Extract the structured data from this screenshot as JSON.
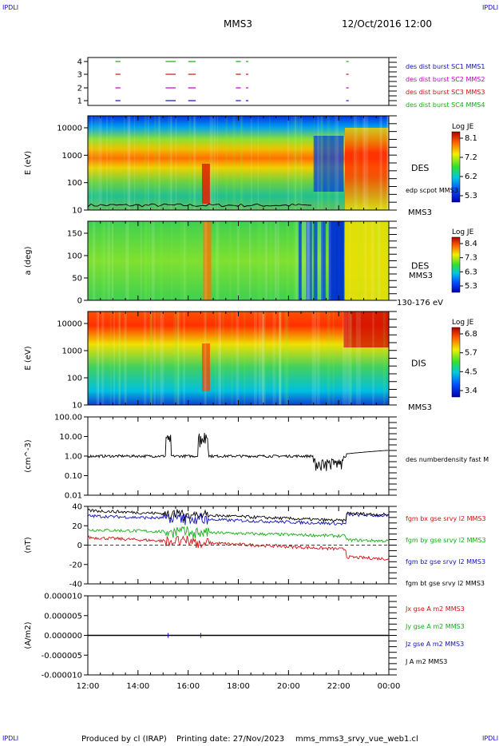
{
  "corners": {
    "tl": "IPDLI",
    "tr": "IPDLI",
    "bl": "IPDLI",
    "br": "IPDLI"
  },
  "header": {
    "spacecraft": "MMS3",
    "datetime": "12/Oct/2016 12:00"
  },
  "footer": {
    "produced_by": "Produced by cl (IRAP)",
    "printing_date": "Printing date: 27/Nov/2023",
    "script": "mms_mms3_srvy_vue_web1.cl"
  },
  "time_axis": {
    "ticks": [
      "12:00",
      "14:00",
      "16:00",
      "18:00",
      "20:00",
      "22:00",
      "00:00"
    ]
  },
  "chart_data": [
    {
      "type": "timeline",
      "name": "burst",
      "yticks": [
        "4",
        "3",
        "2",
        "1"
      ],
      "legend": [
        {
          "label": "des dist burst SC1 MMS1",
          "color": "#1010c0"
        },
        {
          "label": "des dist burst SC2 MMS2",
          "color": "#c000c0"
        },
        {
          "label": "des dist burst SC3 MMS3",
          "color": "#d01010"
        },
        {
          "label": "des dist burst SC4 MMS4",
          "color": "#10b010"
        }
      ],
      "intervals_hours": [
        [
          13.1,
          13.3
        ],
        [
          15.1,
          15.5
        ],
        [
          16.0,
          16.3
        ],
        [
          17.9,
          18.1
        ],
        [
          18.3,
          18.4
        ],
        [
          22.3,
          22.4
        ]
      ],
      "row_colors": [
        "#10b010",
        "#d01010",
        "#c000c0",
        "#1010c0"
      ]
    },
    {
      "type": "heatmap",
      "name": "des-energy",
      "ylabel": "E (eV)",
      "yticks": [
        "10000",
        "1000",
        "100",
        "10"
      ],
      "yscale": "log",
      "ylim": [
        10,
        30000
      ],
      "cbar": {
        "title": "Log JE",
        "ticks": [
          "8.1",
          "7.2",
          "6.2",
          "5.3"
        ]
      },
      "right_label": "DES",
      "sub_label": "edp scpot MMS3",
      "bottom_right": "MMS3"
    },
    {
      "type": "heatmap",
      "name": "des-pitch",
      "ylabel": "a (deg)",
      "yticks": [
        "150",
        "100",
        "50",
        "0"
      ],
      "ylim": [
        0,
        180
      ],
      "cbar": {
        "title": "Log JE",
        "ticks": [
          "8.4",
          "7.3",
          "6.3",
          "5.3"
        ]
      },
      "right_label": "DES",
      "sub_label": "MMS3",
      "bottom_right": "130-176 eV"
    },
    {
      "type": "heatmap",
      "name": "dis-energy",
      "ylabel": "E (eV)",
      "yticks": [
        "10000",
        "1000",
        "100",
        "10"
      ],
      "yscale": "log",
      "ylim": [
        10,
        30000
      ],
      "cbar": {
        "title": "Log JE",
        "ticks": [
          "6.8",
          "5.7",
          "4.5",
          "3.4"
        ]
      },
      "right_label": "DIS",
      "bottom_right": "MMS3"
    },
    {
      "type": "line",
      "name": "density",
      "ylabel": "(cm^-3)",
      "yscale": "log",
      "yticks": [
        "100.00",
        "10.00",
        "1.00",
        "0.10",
        "0.01"
      ],
      "ylim": [
        0.01,
        100
      ],
      "series": [
        {
          "name": "des numberdensity fast M",
          "color": "#000000"
        }
      ]
    },
    {
      "type": "line",
      "name": "bfield",
      "ylabel": "(nT)",
      "yticks": [
        "40",
        "20",
        "0",
        "-20",
        "-40"
      ],
      "ylim": [
        -50,
        50
      ],
      "series": [
        {
          "name": "fgm bx gse srvy l2 MMS3",
          "color": "#d01010"
        },
        {
          "name": "fgm by gse srvy l2 MMS3",
          "color": "#10b010"
        },
        {
          "name": "fgm bz gse srvy l2 MMS3",
          "color": "#1010c0"
        },
        {
          "name": "fgm bt gse srvy l2 MMS3",
          "color": "#000000"
        }
      ]
    },
    {
      "type": "line",
      "name": "current",
      "ylabel": "(A/m2)",
      "yticks": [
        "0.000010",
        "0.000005",
        "0.000000",
        "-0.000005",
        "-0.000010"
      ],
      "ylim": [
        -1e-05,
        1e-05
      ],
      "series": [
        {
          "name": "Jx gse A m2 MMS3",
          "color": "#d01010"
        },
        {
          "name": "Jy gse A m2 MMS3",
          "color": "#10b010"
        },
        {
          "name": "Jz gse A m2 MMS3",
          "color": "#1010c0"
        },
        {
          "name": "J A m2 MMS3",
          "color": "#000000"
        }
      ]
    }
  ]
}
